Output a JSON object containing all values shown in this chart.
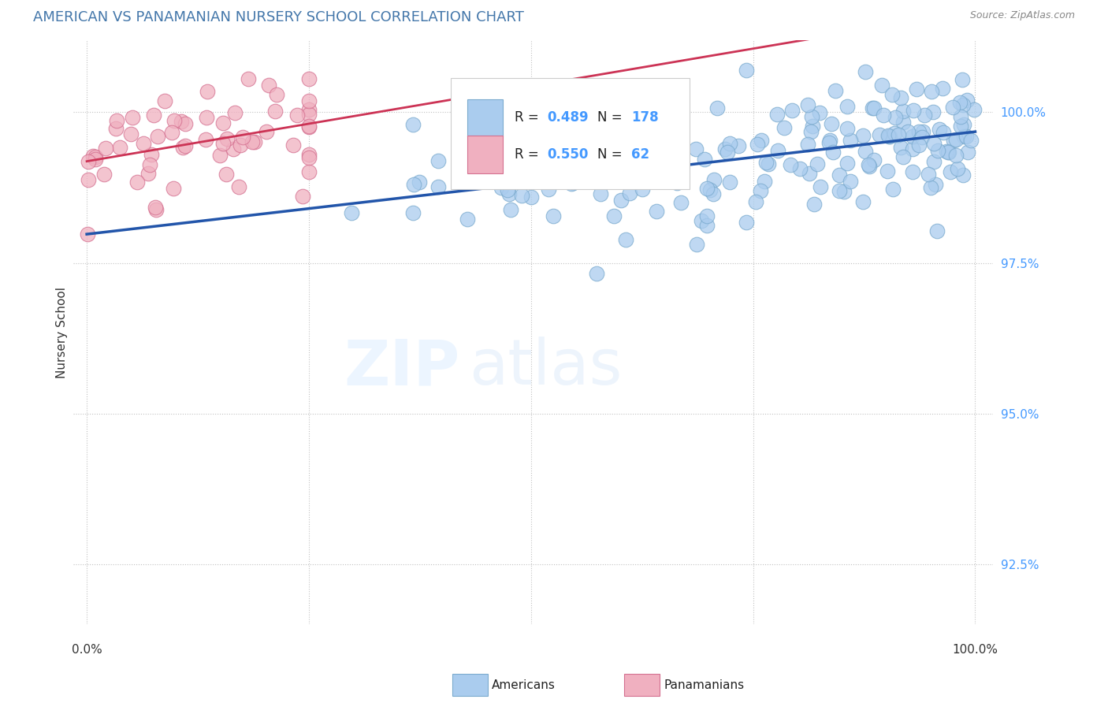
{
  "title": "AMERICAN VS PANAMANIAN NURSERY SCHOOL CORRELATION CHART",
  "source": "Source: ZipAtlas.com",
  "ylabel": "Nursery School",
  "legend_label1": "Americans",
  "legend_label2": "Panamanians",
  "R_american": 0.489,
  "N_american": 178,
  "R_panamanian": 0.55,
  "N_panamanian": 62,
  "american_color": "#aaccee",
  "american_edge": "#7aaace",
  "panamanian_color": "#f0b0c0",
  "panamanian_edge": "#d47090",
  "trend_american": "#2255aa",
  "trend_panamanian": "#cc3355",
  "background": "#ffffff",
  "yticks": [
    92.5,
    95.0,
    97.5,
    100.0
  ],
  "ymin": 91.5,
  "ymax": 101.2,
  "xmin": -1.5,
  "xmax": 102.0,
  "watermark_zip": "ZIP",
  "watermark_atlas": "atlas",
  "title_color": "#4477aa",
  "ytick_color": "#4499ff",
  "source_color": "#888888"
}
